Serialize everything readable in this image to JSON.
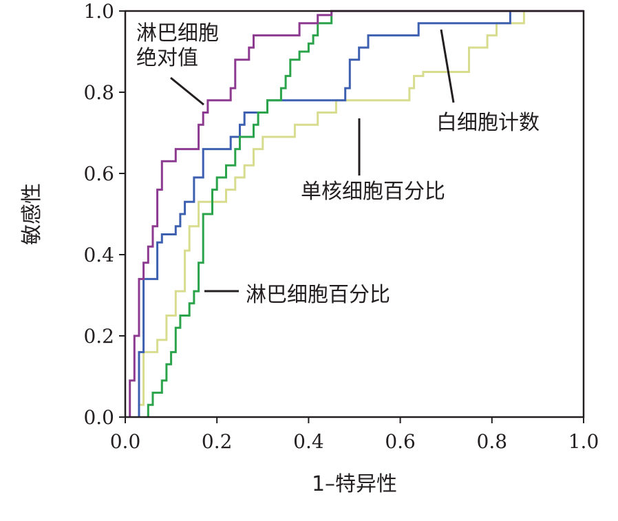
{
  "chart_data": {
    "type": "line",
    "xlabel": "1–特异性",
    "ylabel": "敏感性",
    "xlim": [
      0,
      1
    ],
    "ylim": [
      0,
      1
    ],
    "xticks": [
      "0.0",
      "0.2",
      "0.4",
      "0.6",
      "0.8",
      "1.0"
    ],
    "yticks": [
      "0.0",
      "0.2",
      "0.4",
      "0.6",
      "0.8",
      "1.0"
    ],
    "grid": false,
    "series": [
      {
        "name": "淋巴细胞绝对值",
        "color": "#8b3a8f",
        "points": [
          [
            0.01,
            0
          ],
          [
            0.01,
            0.09
          ],
          [
            0.02,
            0.09
          ],
          [
            0.02,
            0.2
          ],
          [
            0.03,
            0.2
          ],
          [
            0.03,
            0.34
          ],
          [
            0.04,
            0.34
          ],
          [
            0.04,
            0.38
          ],
          [
            0.05,
            0.38
          ],
          [
            0.05,
            0.42
          ],
          [
            0.06,
            0.42
          ],
          [
            0.06,
            0.47
          ],
          [
            0.07,
            0.47
          ],
          [
            0.07,
            0.56
          ],
          [
            0.08,
            0.56
          ],
          [
            0.08,
            0.63
          ],
          [
            0.11,
            0.63
          ],
          [
            0.11,
            0.66
          ],
          [
            0.16,
            0.66
          ],
          [
            0.16,
            0.72
          ],
          [
            0.17,
            0.72
          ],
          [
            0.17,
            0.75
          ],
          [
            0.18,
            0.75
          ],
          [
            0.18,
            0.78
          ],
          [
            0.23,
            0.78
          ],
          [
            0.23,
            0.81
          ],
          [
            0.24,
            0.81
          ],
          [
            0.24,
            0.88
          ],
          [
            0.27,
            0.88
          ],
          [
            0.27,
            0.91
          ],
          [
            0.28,
            0.91
          ],
          [
            0.28,
            0.94
          ],
          [
            0.38,
            0.94
          ],
          [
            0.38,
            0.97
          ],
          [
            0.42,
            0.97
          ],
          [
            0.42,
            0.99
          ],
          [
            0.45,
            0.99
          ],
          [
            0.45,
            1.0
          ],
          [
            1.0,
            1.0
          ]
        ]
      },
      {
        "name": "白细胞计数",
        "color": "#3d5fb0",
        "points": [
          [
            0.03,
            0
          ],
          [
            0.03,
            0.16
          ],
          [
            0.04,
            0.16
          ],
          [
            0.04,
            0.34
          ],
          [
            0.07,
            0.34
          ],
          [
            0.07,
            0.43
          ],
          [
            0.08,
            0.43
          ],
          [
            0.08,
            0.45
          ],
          [
            0.11,
            0.45
          ],
          [
            0.11,
            0.47
          ],
          [
            0.12,
            0.47
          ],
          [
            0.12,
            0.5
          ],
          [
            0.13,
            0.5
          ],
          [
            0.13,
            0.53
          ],
          [
            0.15,
            0.53
          ],
          [
            0.15,
            0.59
          ],
          [
            0.17,
            0.59
          ],
          [
            0.17,
            0.66
          ],
          [
            0.23,
            0.66
          ],
          [
            0.23,
            0.69
          ],
          [
            0.25,
            0.69
          ],
          [
            0.25,
            0.72
          ],
          [
            0.26,
            0.72
          ],
          [
            0.26,
            0.75
          ],
          [
            0.31,
            0.75
          ],
          [
            0.31,
            0.78
          ],
          [
            0.48,
            0.78
          ],
          [
            0.48,
            0.81
          ],
          [
            0.49,
            0.81
          ],
          [
            0.49,
            0.88
          ],
          [
            0.51,
            0.88
          ],
          [
            0.51,
            0.91
          ],
          [
            0.53,
            0.91
          ],
          [
            0.53,
            0.94
          ],
          [
            0.64,
            0.94
          ],
          [
            0.64,
            0.97
          ],
          [
            0.84,
            0.97
          ],
          [
            0.84,
            1.0
          ],
          [
            1.0,
            1.0
          ]
        ]
      },
      {
        "name": "单核细胞百分比",
        "color": "#d8dc8e",
        "points": [
          [
            0.03,
            0
          ],
          [
            0.03,
            0.03
          ],
          [
            0.04,
            0.03
          ],
          [
            0.04,
            0.16
          ],
          [
            0.07,
            0.16
          ],
          [
            0.07,
            0.19
          ],
          [
            0.09,
            0.19
          ],
          [
            0.09,
            0.25
          ],
          [
            0.11,
            0.25
          ],
          [
            0.11,
            0.31
          ],
          [
            0.13,
            0.31
          ],
          [
            0.13,
            0.41
          ],
          [
            0.14,
            0.41
          ],
          [
            0.14,
            0.47
          ],
          [
            0.16,
            0.47
          ],
          [
            0.16,
            0.53
          ],
          [
            0.22,
            0.53
          ],
          [
            0.22,
            0.56
          ],
          [
            0.24,
            0.56
          ],
          [
            0.24,
            0.59
          ],
          [
            0.26,
            0.59
          ],
          [
            0.26,
            0.62
          ],
          [
            0.28,
            0.62
          ],
          [
            0.28,
            0.66
          ],
          [
            0.3,
            0.66
          ],
          [
            0.3,
            0.69
          ],
          [
            0.37,
            0.69
          ],
          [
            0.37,
            0.72
          ],
          [
            0.42,
            0.72
          ],
          [
            0.42,
            0.75
          ],
          [
            0.46,
            0.75
          ],
          [
            0.46,
            0.78
          ],
          [
            0.62,
            0.78
          ],
          [
            0.62,
            0.81
          ],
          [
            0.63,
            0.81
          ],
          [
            0.63,
            0.84
          ],
          [
            0.65,
            0.84
          ],
          [
            0.65,
            0.85
          ],
          [
            0.75,
            0.85
          ],
          [
            0.75,
            0.91
          ],
          [
            0.79,
            0.91
          ],
          [
            0.79,
            0.94
          ],
          [
            0.81,
            0.94
          ],
          [
            0.81,
            0.97
          ],
          [
            0.87,
            0.97
          ],
          [
            0.87,
            1.0
          ],
          [
            1.0,
            1.0
          ]
        ]
      },
      {
        "name": "淋巴细胞百分比",
        "color": "#2aa34a",
        "points": [
          [
            0.05,
            0
          ],
          [
            0.05,
            0.03
          ],
          [
            0.06,
            0.03
          ],
          [
            0.06,
            0.06
          ],
          [
            0.08,
            0.06
          ],
          [
            0.08,
            0.09
          ],
          [
            0.09,
            0.09
          ],
          [
            0.09,
            0.13
          ],
          [
            0.1,
            0.13
          ],
          [
            0.1,
            0.16
          ],
          [
            0.11,
            0.16
          ],
          [
            0.11,
            0.22
          ],
          [
            0.12,
            0.22
          ],
          [
            0.12,
            0.25
          ],
          [
            0.14,
            0.25
          ],
          [
            0.14,
            0.28
          ],
          [
            0.15,
            0.28
          ],
          [
            0.15,
            0.31
          ],
          [
            0.16,
            0.31
          ],
          [
            0.16,
            0.38
          ],
          [
            0.17,
            0.38
          ],
          [
            0.17,
            0.5
          ],
          [
            0.19,
            0.5
          ],
          [
            0.19,
            0.56
          ],
          [
            0.2,
            0.56
          ],
          [
            0.2,
            0.59
          ],
          [
            0.22,
            0.59
          ],
          [
            0.22,
            0.62
          ],
          [
            0.24,
            0.62
          ],
          [
            0.24,
            0.66
          ],
          [
            0.25,
            0.66
          ],
          [
            0.25,
            0.69
          ],
          [
            0.28,
            0.69
          ],
          [
            0.28,
            0.72
          ],
          [
            0.29,
            0.72
          ],
          [
            0.29,
            0.75
          ],
          [
            0.31,
            0.75
          ],
          [
            0.31,
            0.78
          ],
          [
            0.34,
            0.78
          ],
          [
            0.34,
            0.81
          ],
          [
            0.35,
            0.81
          ],
          [
            0.35,
            0.84
          ],
          [
            0.36,
            0.84
          ],
          [
            0.36,
            0.88
          ],
          [
            0.38,
            0.88
          ],
          [
            0.38,
            0.9
          ],
          [
            0.4,
            0.9
          ],
          [
            0.4,
            0.92
          ],
          [
            0.41,
            0.92
          ],
          [
            0.41,
            0.94
          ],
          [
            0.42,
            0.94
          ],
          [
            0.42,
            0.97
          ],
          [
            0.45,
            0.97
          ],
          [
            0.45,
            1.0
          ],
          [
            1.0,
            1.0
          ]
        ]
      }
    ],
    "annotations": [
      {
        "lines": [
          "淋巴细胞",
          "绝对值"
        ],
        "series": "淋巴细胞绝对值"
      },
      {
        "lines": [
          "白细胞计数"
        ],
        "series": "白细胞计数"
      },
      {
        "lines": [
          "单核细胞百分比"
        ],
        "series": "单核细胞百分比"
      },
      {
        "lines": [
          "淋巴细胞百分比"
        ],
        "series": "淋巴细胞百分比"
      }
    ]
  }
}
